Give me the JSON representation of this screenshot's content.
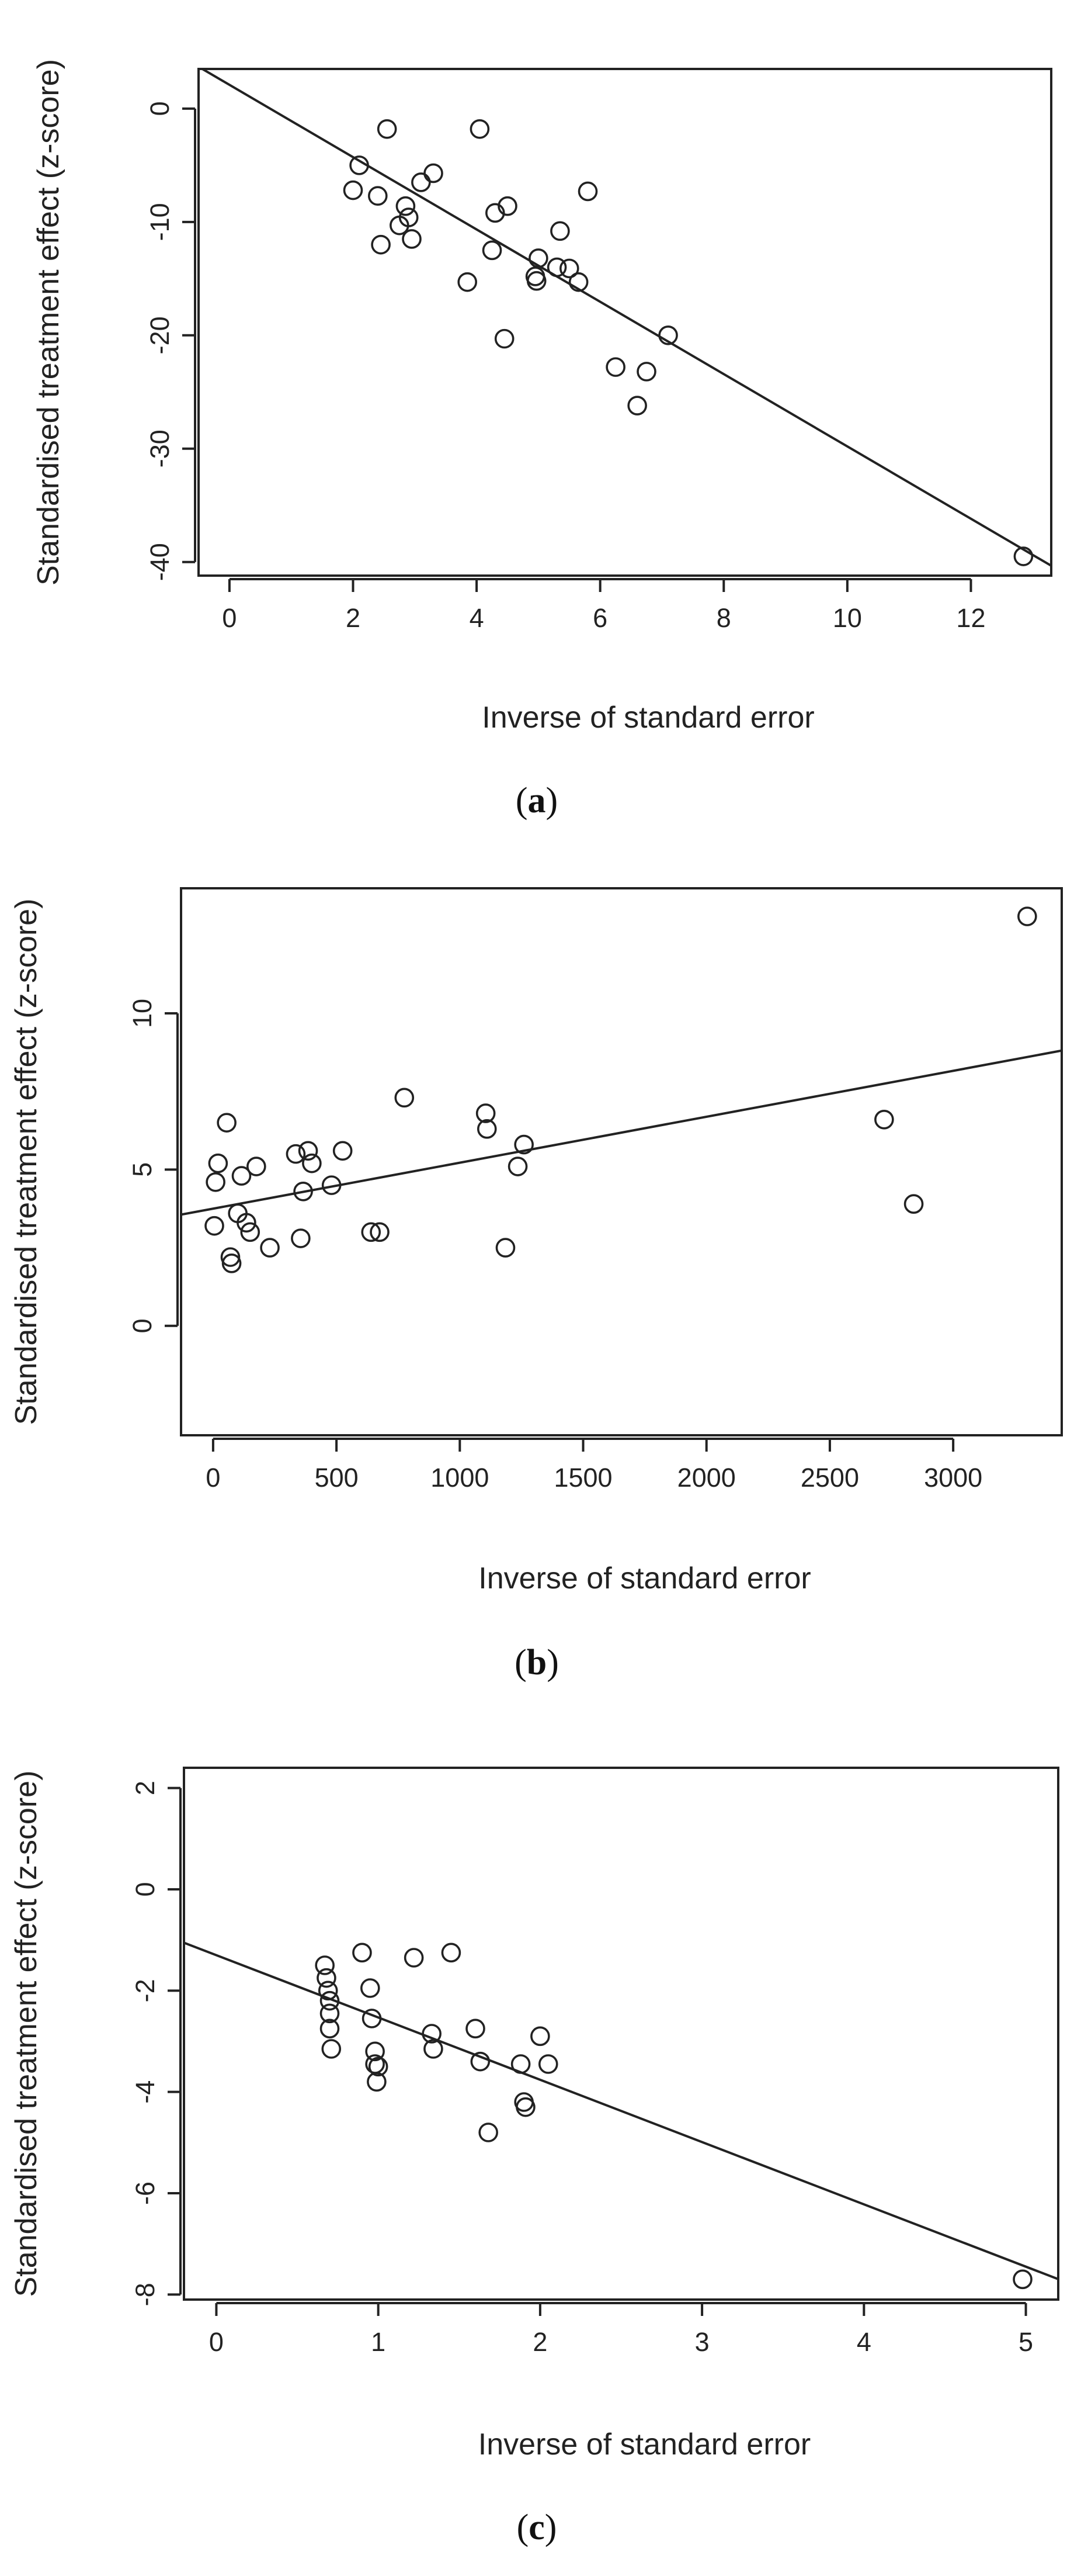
{
  "chart_data": [
    {
      "type": "scatter",
      "panel_label": "a",
      "title": "",
      "xlabel": "Inverse of standard error",
      "ylabel": "Standardised treatment effect (z-score)",
      "xlim": [
        -0.5,
        13.3
      ],
      "ylim": [
        -41.2,
        3.5
      ],
      "xticks": [
        0,
        2,
        4,
        6,
        8,
        10,
        12
      ],
      "yticks": [
        -40,
        -30,
        -20,
        -10,
        0
      ],
      "grid": false,
      "legend": "none",
      "fit_line": {
        "intercept": 2.1,
        "slope": -3.19
      },
      "points": [
        [
          2.0,
          -7.2
        ],
        [
          2.1,
          -5.0
        ],
        [
          2.4,
          -7.7
        ],
        [
          2.45,
          -12.0
        ],
        [
          2.55,
          -1.8
        ],
        [
          2.75,
          -10.3
        ],
        [
          2.85,
          -8.6
        ],
        [
          2.9,
          -9.6
        ],
        [
          2.95,
          -11.5
        ],
        [
          3.1,
          -6.5
        ],
        [
          3.3,
          -5.7
        ],
        [
          3.85,
          -15.3
        ],
        [
          4.05,
          -1.8
        ],
        [
          4.25,
          -12.5
        ],
        [
          4.3,
          -9.2
        ],
        [
          4.45,
          -20.3
        ],
        [
          4.5,
          -8.6
        ],
        [
          4.95,
          -14.8
        ],
        [
          4.97,
          -15.2
        ],
        [
          5.0,
          -13.2
        ],
        [
          5.3,
          -14.0
        ],
        [
          5.35,
          -10.8
        ],
        [
          5.5,
          -14.1
        ],
        [
          5.65,
          -15.3
        ],
        [
          5.8,
          -7.3
        ],
        [
          6.25,
          -22.8
        ],
        [
          6.6,
          -26.2
        ],
        [
          6.75,
          -23.2
        ],
        [
          7.1,
          -20.0
        ],
        [
          12.85,
          -39.5
        ]
      ]
    },
    {
      "type": "scatter",
      "panel_label": "b",
      "title": "",
      "xlabel": "Inverse of standard error",
      "ylabel": "Standardised treatment effect (z-score)",
      "xlim": [
        -130,
        3440
      ],
      "ylim": [
        -3.5,
        14.0
      ],
      "xticks": [
        0,
        500,
        1000,
        1500,
        2000,
        2500,
        3000
      ],
      "yticks": [
        0,
        5,
        10
      ],
      "grid": false,
      "legend": "none",
      "fit_line": {
        "intercept": 3.75,
        "slope": 0.00147
      },
      "points": [
        [
          5,
          3.2
        ],
        [
          10,
          4.6
        ],
        [
          20,
          5.2
        ],
        [
          55,
          6.5
        ],
        [
          70,
          2.2
        ],
        [
          75,
          2.0
        ],
        [
          100,
          3.6
        ],
        [
          115,
          4.8
        ],
        [
          135,
          3.3
        ],
        [
          150,
          3.0
        ],
        [
          175,
          5.1
        ],
        [
          230,
          2.5
        ],
        [
          335,
          5.5
        ],
        [
          355,
          2.8
        ],
        [
          365,
          4.3
        ],
        [
          385,
          5.6
        ],
        [
          400,
          5.2
        ],
        [
          480,
          4.5
        ],
        [
          525,
          5.6
        ],
        [
          640,
          3.0
        ],
        [
          675,
          3.0
        ],
        [
          775,
          7.3
        ],
        [
          1105,
          6.8
        ],
        [
          1110,
          6.3
        ],
        [
          1185,
          2.5
        ],
        [
          1235,
          5.1
        ],
        [
          1260,
          5.8
        ],
        [
          2720,
          6.6
        ],
        [
          2840,
          3.9
        ],
        [
          3300,
          13.1
        ]
      ]
    },
    {
      "type": "scatter",
      "panel_label": "c",
      "title": "",
      "xlabel": "Inverse of standard error",
      "ylabel": "Standardised treatment effect (z-score)",
      "xlim": [
        -0.2,
        5.2
      ],
      "ylim": [
        -8.1,
        2.4
      ],
      "xticks": [
        0,
        1,
        2,
        3,
        4,
        5
      ],
      "yticks": [
        -8,
        -6,
        -4,
        -2,
        0,
        2
      ],
      "grid": false,
      "legend": "none",
      "fit_line": {
        "intercept": -1.3,
        "slope": -1.23
      },
      "points": [
        [
          0.67,
          -1.5
        ],
        [
          0.68,
          -1.75
        ],
        [
          0.69,
          -2.0
        ],
        [
          0.7,
          -2.2
        ],
        [
          0.7,
          -2.45
        ],
        [
          0.7,
          -2.75
        ],
        [
          0.71,
          -3.15
        ],
        [
          0.9,
          -1.25
        ],
        [
          0.95,
          -1.95
        ],
        [
          0.96,
          -2.55
        ],
        [
          0.98,
          -3.2
        ],
        [
          0.98,
          -3.45
        ],
        [
          0.99,
          -3.8
        ],
        [
          1.0,
          -3.5
        ],
        [
          1.22,
          -1.35
        ],
        [
          1.33,
          -2.85
        ],
        [
          1.34,
          -3.15
        ],
        [
          1.45,
          -1.25
        ],
        [
          1.6,
          -2.75
        ],
        [
          1.63,
          -3.4
        ],
        [
          1.68,
          -4.8
        ],
        [
          1.88,
          -3.45
        ],
        [
          1.9,
          -4.2
        ],
        [
          1.91,
          -4.3
        ],
        [
          2.0,
          -2.9
        ],
        [
          2.05,
          -3.45
        ],
        [
          4.98,
          -7.7
        ]
      ]
    }
  ]
}
